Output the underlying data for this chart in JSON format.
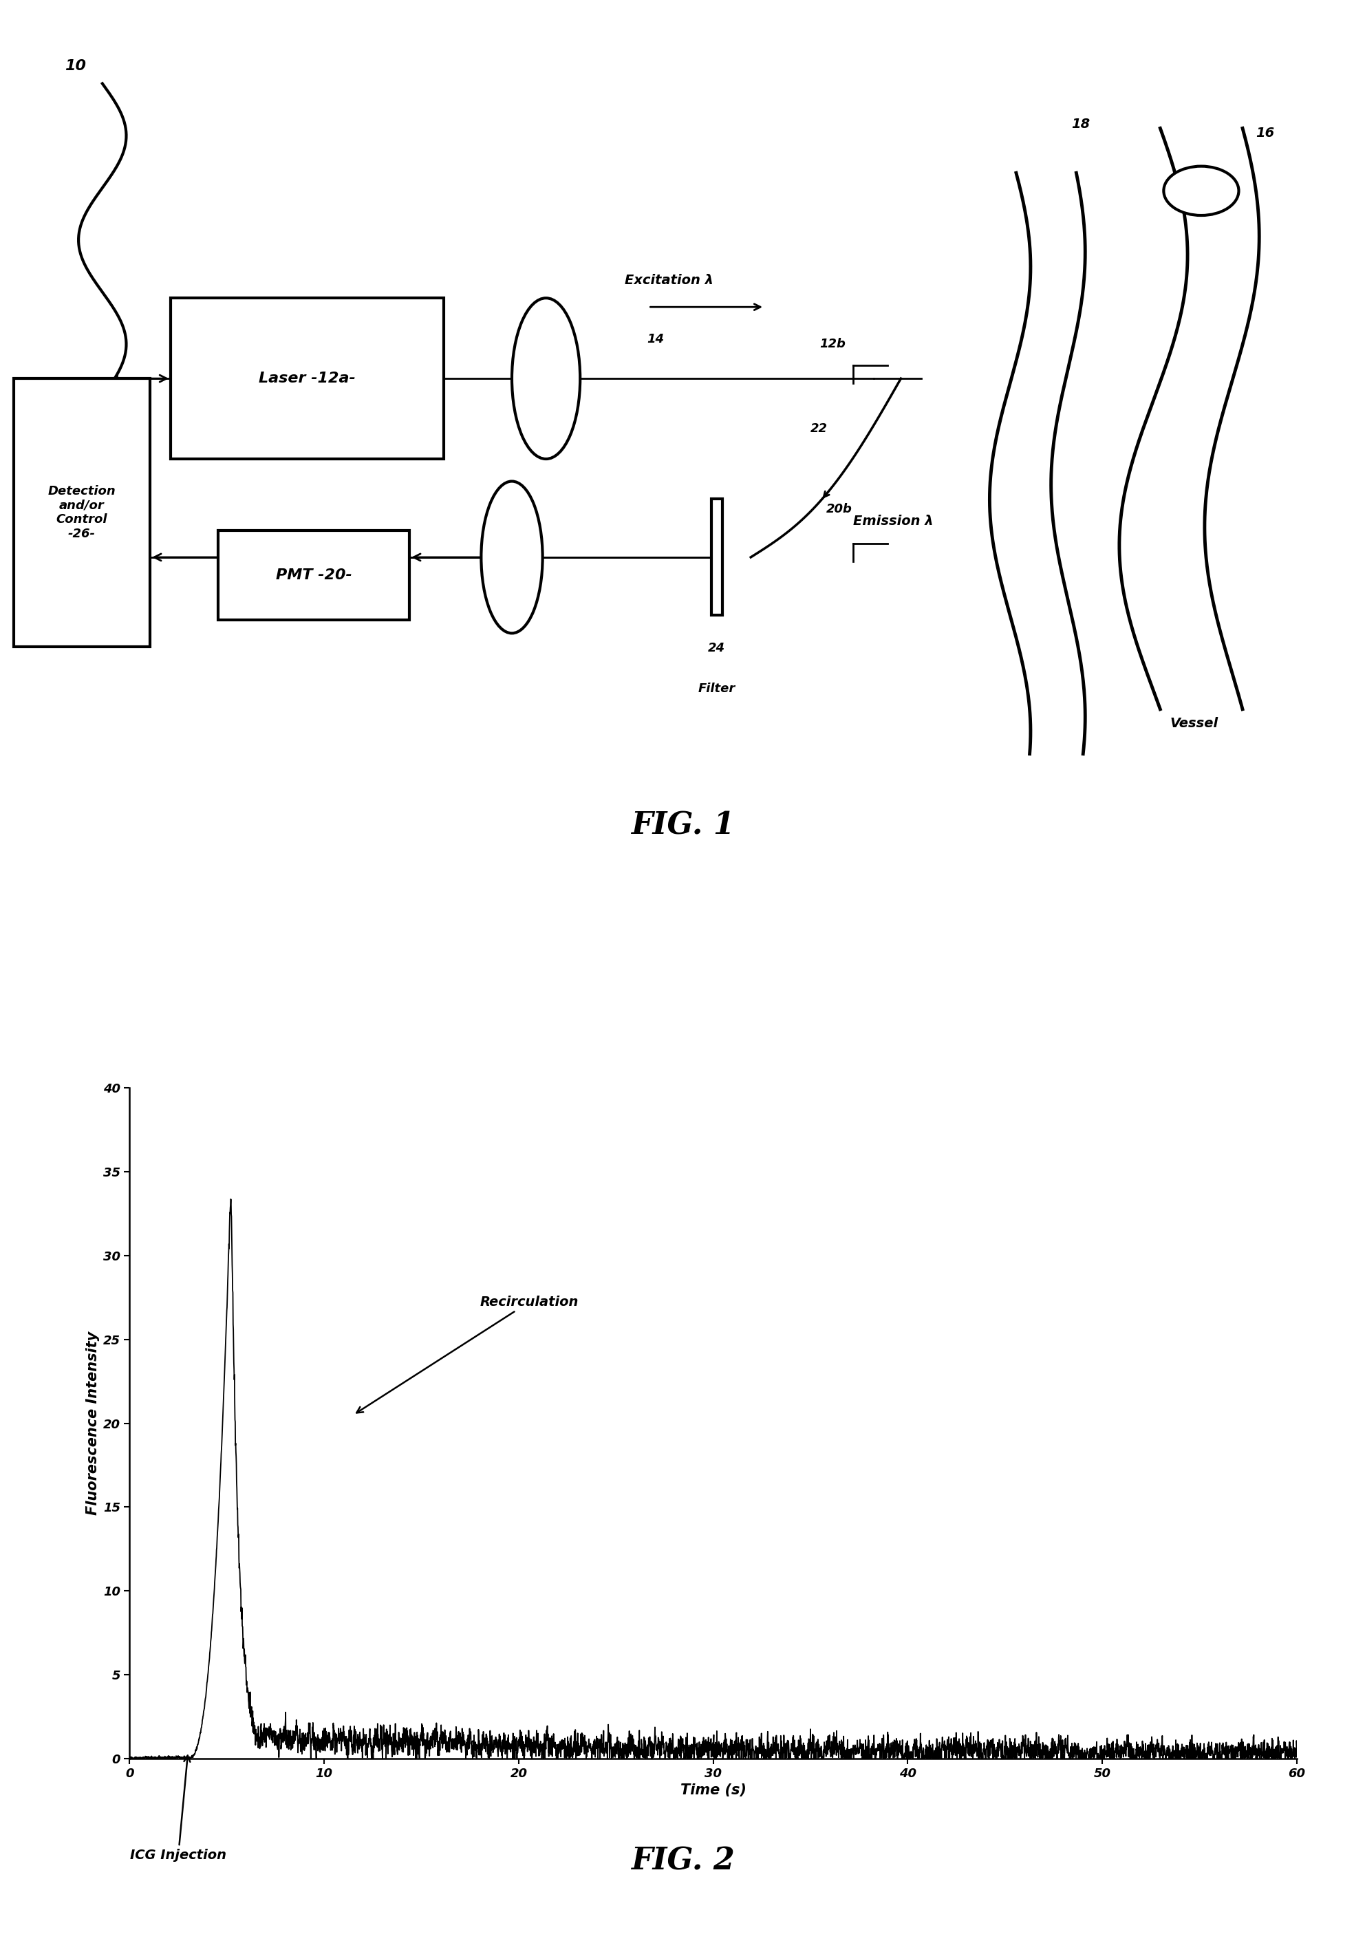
{
  "fig1": {
    "title": "FIG. 1",
    "label_10": "10",
    "label_12a": "Laser -12a-",
    "label_12b": "12b",
    "label_14": "14",
    "label_16": "16",
    "label_18": "18",
    "label_20": "PMT -20-",
    "label_20b": "20b",
    "label_22": "22",
    "label_24": "24",
    "label_filter": "Filter",
    "label_vessel": "Vessel",
    "label_detection": "Detection\nand/or\nControl\n-26-",
    "excitation_label": "Excitation λ",
    "emission_label": "Emission λ"
  },
  "fig2": {
    "title": "FIG. 2",
    "xlabel": "Time (s)",
    "ylabel": "Fluorescence Intensity",
    "xlim": [
      0,
      60
    ],
    "ylim": [
      0,
      40
    ],
    "xticks": [
      0,
      10,
      20,
      30,
      40,
      50,
      60
    ],
    "yticks": [
      0,
      5,
      10,
      15,
      20,
      25,
      30,
      35,
      40
    ],
    "annotation_recirculation": "Recirculation",
    "annotation_icg": "ICG Injection"
  },
  "background_color": "#ffffff",
  "line_color": "#000000"
}
